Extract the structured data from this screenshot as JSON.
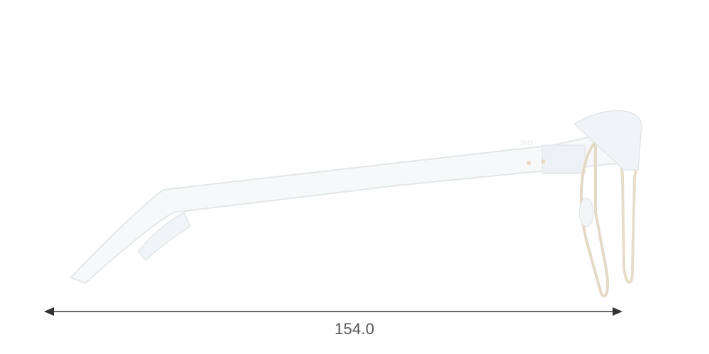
{
  "product": {
    "brand_logo_text": "JINS",
    "view": "side"
  },
  "measurement": {
    "temple_length": "154.0"
  },
  "colors": {
    "frame": "#e8ecef",
    "rim_metal": "#e6d9c6",
    "arrow": "#333333",
    "label": "#555555"
  }
}
